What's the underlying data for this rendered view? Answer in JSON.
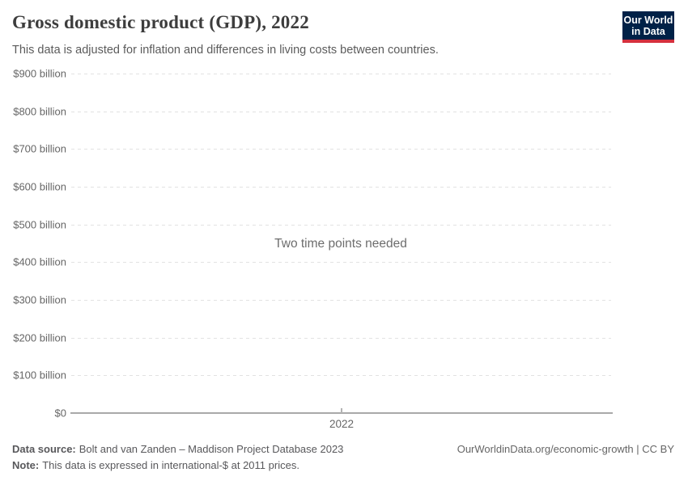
{
  "header": {
    "title": "Gross domestic product (GDP), 2022",
    "subtitle": "This data is adjusted for inflation and differences in living costs between countries.",
    "logo": {
      "line1": "Our World",
      "line2": "in Data",
      "bg_color": "#002147",
      "bar_color": "#d5303e",
      "text_color": "#ffffff"
    }
  },
  "chart_data": {
    "type": "line",
    "empty_state_message": "Two time points needed",
    "series": [],
    "x_ticks": [
      "2022"
    ],
    "y_ticks": [
      {
        "value": 900,
        "label": "$900 billion"
      },
      {
        "value": 800,
        "label": "$800 billion"
      },
      {
        "value": 700,
        "label": "$700 billion"
      },
      {
        "value": 600,
        "label": "$600 billion"
      },
      {
        "value": 500,
        "label": "$500 billion"
      },
      {
        "value": 400,
        "label": "$400 billion"
      },
      {
        "value": 300,
        "label": "$300 billion"
      },
      {
        "value": 200,
        "label": "$200 billion"
      },
      {
        "value": 100,
        "label": "$100 billion"
      },
      {
        "value": 0,
        "label": "$0"
      }
    ],
    "ylim": [
      0,
      900
    ],
    "y_unit": "billion international-$",
    "grid": "horizontal dashed",
    "legend": "none",
    "gridline_color": "#e2e2e2",
    "axis_color": "#a9a9a9",
    "tick_label_color": "#666666"
  },
  "footer": {
    "data_source_label": "Data source:",
    "data_source_text": "Bolt and van Zanden – Maddison Project Database 2023",
    "note_label": "Note:",
    "note_text": "This data is expressed in international-$ at 2011 prices.",
    "link_text": "OurWorldinData.org/economic-growth | CC BY"
  }
}
